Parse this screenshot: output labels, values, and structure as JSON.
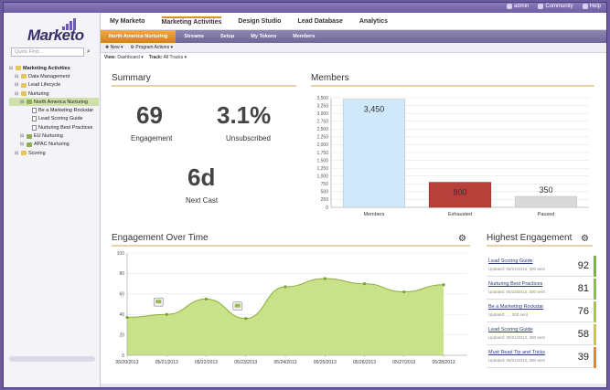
{
  "util": {
    "items": [
      {
        "icon": "user-icon",
        "label": "admin"
      },
      {
        "icon": "people-icon",
        "label": "Community"
      },
      {
        "icon": "help-icon",
        "label": "Help"
      }
    ]
  },
  "logo": {
    "text": "Marketo"
  },
  "sidebar": {
    "search_placeholder": "Quick Find...",
    "tree": [
      {
        "label": "Marketing Activities",
        "level": 0,
        "type": "root",
        "bold": true
      },
      {
        "label": "Data Management",
        "level": 1,
        "type": "folder"
      },
      {
        "label": "Lead Lifecycle",
        "level": 1,
        "type": "folder"
      },
      {
        "label": "Nurturing",
        "level": 1,
        "type": "folder"
      },
      {
        "label": "North America Nurturing",
        "level": 2,
        "type": "program",
        "selected": true
      },
      {
        "label": "Be a Marketing Rockstar",
        "level": 3,
        "type": "doc"
      },
      {
        "label": "Lead Scoring Guide",
        "level": 3,
        "type": "doc"
      },
      {
        "label": "Nurturing Best Practices",
        "level": 3,
        "type": "doc"
      },
      {
        "label": "EU Nurturing",
        "level": 2,
        "type": "program"
      },
      {
        "label": "APAC Nurturing",
        "level": 2,
        "type": "program"
      },
      {
        "label": "Scoring",
        "level": 1,
        "type": "folder"
      }
    ]
  },
  "nav": {
    "items": [
      "My Marketo",
      "Marketing Activities",
      "Design Studio",
      "Lead Database",
      "Analytics"
    ],
    "active": 1
  },
  "subnav": {
    "tabs": [
      "North America Nurturing",
      "Streams",
      "Setup",
      "My Tokens",
      "Members"
    ],
    "active": 0
  },
  "toolbar": {
    "new_label": "New",
    "actions_label": "Program Actions"
  },
  "filters": {
    "view_label": "View:",
    "view_value": "Dashboard",
    "track_label": "Track:",
    "track_value": "All Tracks"
  },
  "summary": {
    "title": "Summary",
    "engagement_value": "69",
    "engagement_label": "Engagement",
    "unsub_value": "3.1%",
    "unsub_label": "Unsubscribed",
    "nextcast_value": "6d",
    "nextcast_label": "Next Cast"
  },
  "members": {
    "title": "Members",
    "chart_data": {
      "type": "bar",
      "categories": [
        "Members",
        "Exhausted",
        "Paused"
      ],
      "values": [
        3450,
        800,
        350
      ],
      "value_labels": [
        "3,450",
        "800",
        "350"
      ],
      "colors": [
        "#cfe8fa",
        "#b8403a",
        "#d9d9d9"
      ],
      "ylim": [
        0,
        3500
      ],
      "yticks": [
        0,
        250,
        500,
        750,
        1000,
        1250,
        1500,
        1750,
        2000,
        2250,
        2500,
        2750,
        3000,
        3250,
        3500
      ],
      "ytick_labels": [
        "0",
        "250",
        "500",
        "750",
        "1,000",
        "1,250",
        "1,500",
        "1,750",
        "2,000",
        "2,250",
        "2,500",
        "2,750",
        "3,000",
        "3,250",
        "3,500"
      ],
      "grid": true
    }
  },
  "engagement_time": {
    "title": "Engagement Over Time",
    "chart_data": {
      "type": "area",
      "x_labels": [
        "05/20/2013",
        "05/21/2013",
        "05/22/2013",
        "05/23/2013",
        "05/24/2013",
        "05/25/2013",
        "05/26/2013",
        "05/27/2013",
        "05/28/2013"
      ],
      "points": [
        {
          "x": 0,
          "y": 37
        },
        {
          "x": 1,
          "y": 40
        },
        {
          "x": 2,
          "y": 55
        },
        {
          "x": 3,
          "y": 36
        },
        {
          "x": 4,
          "y": 67
        },
        {
          "x": 5,
          "y": 75
        },
        {
          "x": 6,
          "y": 70
        },
        {
          "x": 7,
          "y": 62
        },
        {
          "x": 8,
          "y": 69
        }
      ],
      "x_range": [
        0,
        8.6
      ],
      "ylim": [
        0,
        100
      ],
      "yticks": [
        0,
        20,
        40,
        60,
        80,
        100
      ],
      "markers_at": [
        1,
        3
      ],
      "fill": "#c9e28a",
      "line": "#8cb03a"
    }
  },
  "highest": {
    "title": "Highest Engagement",
    "items": [
      {
        "name": "Lead Scoring Guide",
        "updated": "Updated: 05/21/2013, 300 sent",
        "score": "92",
        "color": "#7cb82e"
      },
      {
        "name": "Nurturing Best Practices",
        "updated": "Updated: 05/23/2013, 300 sent",
        "score": "81",
        "color": "#8cc03a"
      },
      {
        "name": "Be a Marketing Rockstar",
        "updated": "Updated: ..., 300 sent",
        "score": "76",
        "color": "#a8c83a"
      },
      {
        "name": "Lead Scoring Guide",
        "updated": "Updated: 05/21/2013, 300 sent",
        "score": "58",
        "color": "#c8c83a"
      },
      {
        "name": "Must Read Tip and Tricks",
        "updated": "Updated: 05/21/2013, 300 sent",
        "score": "39",
        "color": "#e08a2a"
      }
    ]
  }
}
